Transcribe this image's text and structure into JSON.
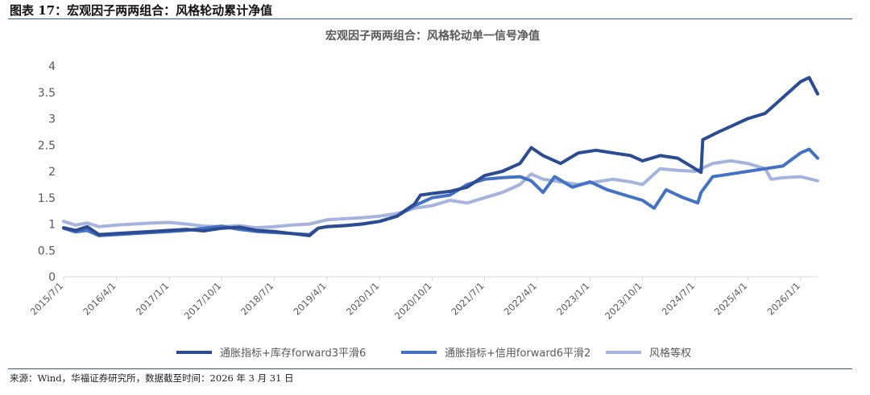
{
  "figure_title": "图表 17：宏观因子两两组合：风格轮动累计净值",
  "source_note": "来源：Wind，华福证券研究所，数据截至时间：2026 年 3 月 31 日",
  "colors": {
    "series1": "#2b4b93",
    "series2": "#4472c4",
    "series3": "#a5b4df",
    "axis": "#d9d9d9",
    "text": "#595959",
    "rule": "#2e5ba8"
  },
  "chart_data": {
    "type": "line",
    "title": "宏观因子两两组合：风格轮动单一信号净值",
    "xlabel": "",
    "ylabel": "",
    "ylim": [
      0,
      4
    ],
    "yticks": [
      "0",
      "0.5",
      "1",
      "1.5",
      "2",
      "2.5",
      "3",
      "3.5",
      "4"
    ],
    "x_range": [
      "2015-07-01",
      "2026-03-31"
    ],
    "xticks": [
      "2015/7/1",
      "2016/4/1",
      "2017/1/1",
      "2017/10/1",
      "2018/7/1",
      "2019/4/1",
      "2020/1/1",
      "2020/10/1",
      "2021/7/1",
      "2022/4/1",
      "2023/1/1",
      "2023/10/1",
      "2024/7/1",
      "2025/4/1",
      "2026/1/1"
    ],
    "grid": false,
    "legend_position": "bottom",
    "series": [
      {
        "name": "通胀指标+库存forward3平滑6",
        "color": "#2b4b93",
        "points": [
          [
            "2015-07-01",
            0.93
          ],
          [
            "2015-09-01",
            0.88
          ],
          [
            "2015-11-01",
            0.95
          ],
          [
            "2016-01-01",
            0.8
          ],
          [
            "2016-04-01",
            0.82
          ],
          [
            "2016-07-01",
            0.84
          ],
          [
            "2016-10-01",
            0.86
          ],
          [
            "2017-01-01",
            0.88
          ],
          [
            "2017-04-01",
            0.9
          ],
          [
            "2017-07-01",
            0.87
          ],
          [
            "2017-10-01",
            0.92
          ],
          [
            "2018-01-01",
            0.94
          ],
          [
            "2018-04-01",
            0.88
          ],
          [
            "2018-07-01",
            0.86
          ],
          [
            "2018-10-01",
            0.82
          ],
          [
            "2019-01-01",
            0.78
          ],
          [
            "2019-02-15",
            0.92
          ],
          [
            "2019-04-01",
            0.95
          ],
          [
            "2019-07-01",
            0.97
          ],
          [
            "2019-10-01",
            1.0
          ],
          [
            "2020-01-01",
            1.05
          ],
          [
            "2020-04-01",
            1.15
          ],
          [
            "2020-07-01",
            1.38
          ],
          [
            "2020-08-01",
            1.55
          ],
          [
            "2020-10-01",
            1.58
          ],
          [
            "2021-01-01",
            1.62
          ],
          [
            "2021-04-01",
            1.7
          ],
          [
            "2021-07-01",
            1.92
          ],
          [
            "2021-10-01",
            2.0
          ],
          [
            "2022-01-01",
            2.15
          ],
          [
            "2022-03-01",
            2.45
          ],
          [
            "2022-05-01",
            2.3
          ],
          [
            "2022-08-01",
            2.15
          ],
          [
            "2022-11-01",
            2.35
          ],
          [
            "2023-02-01",
            2.4
          ],
          [
            "2023-05-01",
            2.35
          ],
          [
            "2023-08-01",
            2.3
          ],
          [
            "2023-10-01",
            2.2
          ],
          [
            "2024-01-01",
            2.3
          ],
          [
            "2024-04-01",
            2.25
          ],
          [
            "2024-07-01",
            2.05
          ],
          [
            "2024-08-01",
            1.98
          ],
          [
            "2024-08-10",
            2.6
          ],
          [
            "2024-11-01",
            2.75
          ],
          [
            "2025-01-01",
            2.85
          ],
          [
            "2025-04-01",
            3.0
          ],
          [
            "2025-07-01",
            3.1
          ],
          [
            "2025-10-01",
            3.4
          ],
          [
            "2026-01-01",
            3.7
          ],
          [
            "2026-02-15",
            3.78
          ],
          [
            "2026-03-31",
            3.47
          ]
        ]
      },
      {
        "name": "通胀指标+信用forward6平滑2",
        "color": "#4472c4",
        "points": [
          [
            "2015-07-01",
            0.92
          ],
          [
            "2015-09-01",
            0.85
          ],
          [
            "2015-11-01",
            0.88
          ],
          [
            "2016-01-01",
            0.78
          ],
          [
            "2016-04-01",
            0.8
          ],
          [
            "2016-07-01",
            0.82
          ],
          [
            "2016-10-01",
            0.84
          ],
          [
            "2017-01-01",
            0.86
          ],
          [
            "2017-04-01",
            0.88
          ],
          [
            "2017-07-01",
            0.92
          ],
          [
            "2017-10-01",
            0.96
          ],
          [
            "2018-01-01",
            0.9
          ],
          [
            "2018-04-01",
            0.86
          ],
          [
            "2018-07-01",
            0.84
          ],
          [
            "2018-10-01",
            0.82
          ],
          [
            "2019-01-01",
            0.8
          ],
          [
            "2019-02-15",
            0.92
          ],
          [
            "2019-04-01",
            0.95
          ],
          [
            "2019-07-01",
            0.97
          ],
          [
            "2019-10-01",
            1.0
          ],
          [
            "2020-01-01",
            1.05
          ],
          [
            "2020-04-01",
            1.15
          ],
          [
            "2020-07-01",
            1.35
          ],
          [
            "2020-10-01",
            1.5
          ],
          [
            "2021-01-01",
            1.55
          ],
          [
            "2021-04-01",
            1.75
          ],
          [
            "2021-07-01",
            1.85
          ],
          [
            "2021-10-01",
            1.88
          ],
          [
            "2022-01-01",
            1.9
          ],
          [
            "2022-03-01",
            1.82
          ],
          [
            "2022-05-01",
            1.6
          ],
          [
            "2022-07-01",
            1.9
          ],
          [
            "2022-10-01",
            1.7
          ],
          [
            "2023-01-01",
            1.8
          ],
          [
            "2023-04-01",
            1.65
          ],
          [
            "2023-07-01",
            1.55
          ],
          [
            "2023-10-01",
            1.45
          ],
          [
            "2023-12-01",
            1.3
          ],
          [
            "2024-02-01",
            1.65
          ],
          [
            "2024-05-01",
            1.5
          ],
          [
            "2024-07-15",
            1.4
          ],
          [
            "2024-08-01",
            1.6
          ],
          [
            "2024-10-01",
            1.9
          ],
          [
            "2025-01-01",
            1.95
          ],
          [
            "2025-04-01",
            2.0
          ],
          [
            "2025-07-01",
            2.05
          ],
          [
            "2025-10-01",
            2.1
          ],
          [
            "2026-01-01",
            2.35
          ],
          [
            "2026-02-15",
            2.42
          ],
          [
            "2026-03-31",
            2.25
          ]
        ]
      },
      {
        "name": "风格等权",
        "color": "#a5b4df",
        "points": [
          [
            "2015-07-01",
            1.05
          ],
          [
            "2015-09-01",
            0.98
          ],
          [
            "2015-11-01",
            1.02
          ],
          [
            "2016-01-01",
            0.95
          ],
          [
            "2016-04-01",
            0.98
          ],
          [
            "2016-07-01",
            1.0
          ],
          [
            "2016-10-01",
            1.02
          ],
          [
            "2017-01-01",
            1.03
          ],
          [
            "2017-04-01",
            1.0
          ],
          [
            "2017-07-01",
            0.96
          ],
          [
            "2017-10-01",
            0.95
          ],
          [
            "2018-01-01",
            0.97
          ],
          [
            "2018-04-01",
            0.93
          ],
          [
            "2018-07-01",
            0.95
          ],
          [
            "2018-10-01",
            0.98
          ],
          [
            "2019-01-01",
            1.0
          ],
          [
            "2019-04-01",
            1.08
          ],
          [
            "2019-07-01",
            1.1
          ],
          [
            "2019-10-01",
            1.12
          ],
          [
            "2020-01-01",
            1.15
          ],
          [
            "2020-04-01",
            1.2
          ],
          [
            "2020-07-01",
            1.3
          ],
          [
            "2020-10-01",
            1.35
          ],
          [
            "2021-01-01",
            1.45
          ],
          [
            "2021-04-01",
            1.4
          ],
          [
            "2021-07-01",
            1.5
          ],
          [
            "2021-10-01",
            1.6
          ],
          [
            "2022-01-01",
            1.75
          ],
          [
            "2022-03-01",
            1.95
          ],
          [
            "2022-05-01",
            1.85
          ],
          [
            "2022-08-01",
            1.8
          ],
          [
            "2022-11-01",
            1.75
          ],
          [
            "2023-02-01",
            1.8
          ],
          [
            "2023-05-01",
            1.85
          ],
          [
            "2023-08-01",
            1.8
          ],
          [
            "2023-10-01",
            1.75
          ],
          [
            "2024-01-01",
            2.05
          ],
          [
            "2024-04-01",
            2.02
          ],
          [
            "2024-07-01",
            2.0
          ],
          [
            "2024-10-01",
            2.15
          ],
          [
            "2025-01-01",
            2.2
          ],
          [
            "2025-04-01",
            2.15
          ],
          [
            "2025-07-01",
            2.05
          ],
          [
            "2025-08-01",
            1.85
          ],
          [
            "2025-10-01",
            1.88
          ],
          [
            "2026-01-01",
            1.9
          ],
          [
            "2026-03-31",
            1.82
          ]
        ]
      }
    ]
  }
}
